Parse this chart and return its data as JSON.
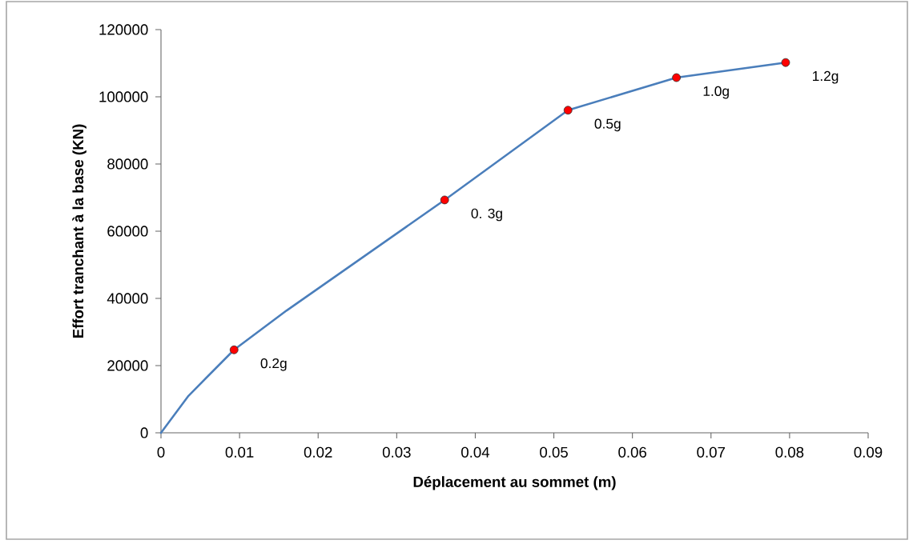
{
  "chart_data": {
    "type": "line",
    "xlabel": "Déplacement au sommet (m)",
    "ylabel": "Effort tranchant à la base (KN)",
    "xlim": [
      0,
      0.09
    ],
    "xticks": [
      0,
      0.01,
      0.02,
      0.03,
      0.04,
      0.05,
      0.06,
      0.07,
      0.08,
      0.09
    ],
    "ylim": [
      0,
      120000
    ],
    "yticks": [
      0,
      20000,
      40000,
      60000,
      80000,
      100000,
      120000
    ],
    "series": [
      {
        "color": "#4a7ebb",
        "marker": "none",
        "x": [
          0,
          0.0035,
          0.0093,
          0.016,
          0.0361,
          0.0518,
          0.0656,
          0.0795
        ],
        "values": [
          0,
          11000,
          24700,
          36400,
          69300,
          96000,
          105700,
          110200
        ]
      },
      {
        "type": "scatter",
        "color": "#ff0000",
        "marker": "circle",
        "x": [
          0.0093,
          0.0361,
          0.0518,
          0.0656,
          0.0795
        ],
        "values": [
          24700,
          69300,
          96000,
          105700,
          110200
        ]
      }
    ],
    "annotations": [
      {
        "text": "0.2g",
        "x": 0.0093,
        "y": 24700
      },
      {
        "text": "0. 3g",
        "x": 0.0361,
        "y": 69300
      },
      {
        "text": "0.5g",
        "x": 0.0518,
        "y": 96000
      },
      {
        "text": "1.0g",
        "x": 0.0656,
        "y": 105700
      },
      {
        "text": "1.2g",
        "x": 0.0795,
        "y": 110200
      }
    ]
  }
}
